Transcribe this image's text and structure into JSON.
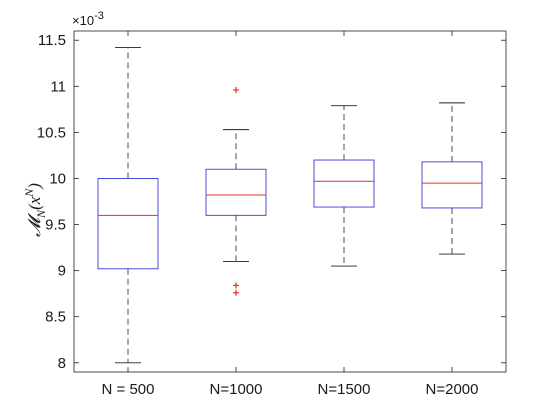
{
  "chart_data": {
    "type": "boxplot",
    "ylabel": "𝓜N(xN)",
    "ylabel_parts": {
      "main": "𝓜",
      "sub": "N",
      "open": "(x",
      "sup": "N",
      "close": ")"
    },
    "y_exponent_label": "×10⁻³",
    "y_exponent_parts": {
      "base": "×10",
      "power": "-3"
    },
    "ylim": [
      7.9,
      11.6
    ],
    "yticks": [
      8,
      8.5,
      9,
      9.5,
      10,
      10.5,
      11,
      11.5
    ],
    "ytick_labels": [
      "8",
      "8.5",
      "9",
      "9.5",
      "10",
      "10.5",
      "11",
      "11.5"
    ],
    "categories": [
      "N = 500",
      "N=1000",
      "N=1500",
      "N=2000"
    ],
    "boxes": [
      {
        "category": "N = 500",
        "whisker_low": 8.0,
        "q1": 9.02,
        "median": 9.6,
        "q3": 10.0,
        "whisker_high": 11.42,
        "outliers": []
      },
      {
        "category": "N=1000",
        "whisker_low": 9.1,
        "q1": 9.6,
        "median": 9.82,
        "q3": 10.1,
        "whisker_high": 10.53,
        "outliers": [
          10.96,
          8.84,
          8.76
        ]
      },
      {
        "category": "N=1500",
        "whisker_low": 9.05,
        "q1": 9.69,
        "median": 9.97,
        "q3": 10.2,
        "whisker_high": 10.79,
        "outliers": []
      },
      {
        "category": "N=2000",
        "whisker_low": 9.18,
        "q1": 9.68,
        "median": 9.95,
        "q3": 10.18,
        "whisker_high": 10.82,
        "outliers": []
      }
    ],
    "grid": false,
    "colors": {
      "box": "#3a3ad8",
      "median": "#e8302a",
      "whisker": "#222222",
      "outlier": "#e8302a",
      "axis": "#222222"
    }
  }
}
